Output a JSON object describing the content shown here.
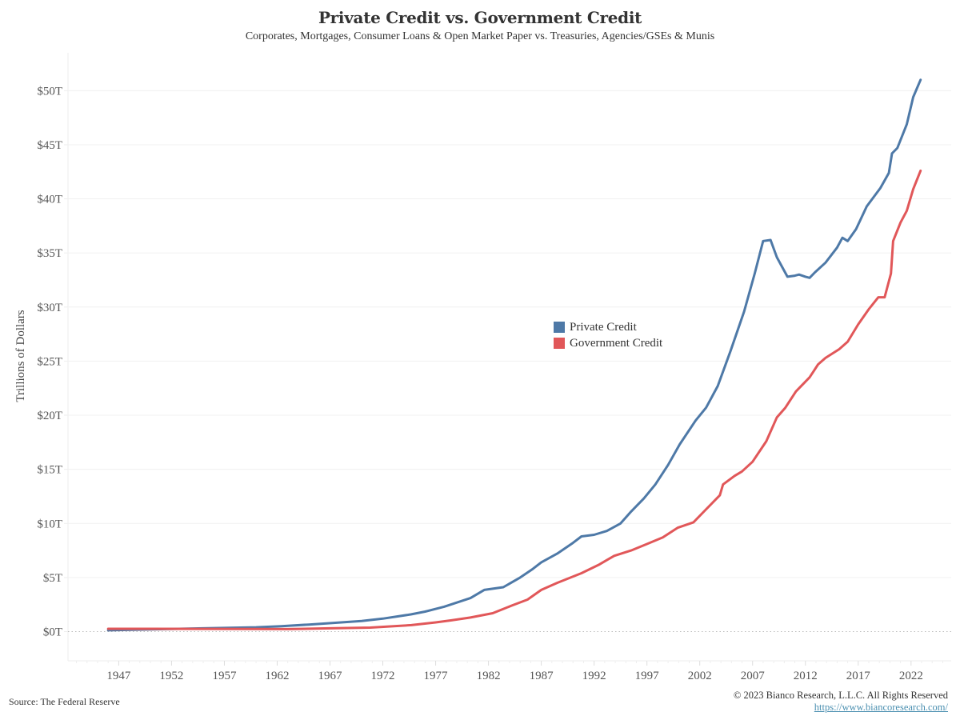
{
  "chart_data": {
    "type": "line",
    "title": "Private Credit vs. Government Credit",
    "subtitle": "Corporates, Mortgages, Consumer Loans & Open Market Paper vs. Treasuries, Agencies/GSEs & Munis",
    "xlabel": "",
    "ylabel": "Trillions of Dollars",
    "xlim": [
      1942.2,
      2025.8
    ],
    "ylim": [
      -2.7,
      53.5
    ],
    "x_ticks": [
      1947,
      1952,
      1957,
      1962,
      1967,
      1972,
      1977,
      1982,
      1987,
      1992,
      1997,
      2002,
      2007,
      2012,
      2017,
      2022
    ],
    "x_tick_labels": [
      "1947",
      "1952",
      "1957",
      "1962",
      "1967",
      "1972",
      "1977",
      "1982",
      "1987",
      "1992",
      "1997",
      "2002",
      "2007",
      "2012",
      "2017",
      "2022"
    ],
    "y_ticks": [
      0,
      5,
      10,
      15,
      20,
      25,
      30,
      35,
      40,
      45,
      50
    ],
    "y_tick_labels": [
      "$0T",
      "$5T",
      "$10T",
      "$15T",
      "$20T",
      "$25T",
      "$30T",
      "$35T",
      "$40T",
      "$45T",
      "$50T"
    ],
    "grid": true,
    "legend_position": "center",
    "series": [
      {
        "name": "Private Credit",
        "color": "#4e79a7",
        "x": [
          1946,
          1950,
          1955,
          1960,
          1962.4,
          1965,
          1970,
          1972,
          1974.7,
          1976,
          1977.8,
          1980.3,
          1981.6,
          1983.4,
          1985,
          1986.2,
          1987,
          1988.5,
          1990,
          1990.8,
          1992,
          1993.2,
          1994.5,
          1995.5,
          1996.7,
          1997.8,
          1999,
          2000.1,
          2001.6,
          2002.6,
          2003.7,
          2004.9,
          2006.2,
          2007.2,
          2008.0,
          2008.7,
          2009.3,
          2010.3,
          2011.0,
          2011.4,
          2012.0,
          2012.4,
          2012.9,
          2013.9,
          2015.0,
          2015.5,
          2016.0,
          2016.8,
          2017.8,
          2019.1,
          2019.9,
          2020.2,
          2020.7,
          2021.6,
          2022.2,
          2022.9
        ],
        "values": [
          0.12,
          0.2,
          0.3,
          0.4,
          0.5,
          0.65,
          0.98,
          1.2,
          1.6,
          1.85,
          2.3,
          3.1,
          3.85,
          4.1,
          5.0,
          5.8,
          6.4,
          7.2,
          8.2,
          8.8,
          8.95,
          9.3,
          10.0,
          11.1,
          12.3,
          13.6,
          15.4,
          17.3,
          19.5,
          20.7,
          22.7,
          25.9,
          29.6,
          33.1,
          36.1,
          36.2,
          34.6,
          32.8,
          32.9,
          33.0,
          32.8,
          32.7,
          33.2,
          34.1,
          35.5,
          36.4,
          36.1,
          37.2,
          39.3,
          41.0,
          42.4,
          44.2,
          44.7,
          46.9,
          49.4,
          51.0
        ]
      },
      {
        "name": "Government Credit",
        "color": "#e15759",
        "x": [
          1946,
          1950,
          1955,
          1960,
          1963,
          1967,
          1970.8,
          1974.7,
          1977,
          1978.5,
          1980.3,
          1982.4,
          1984.2,
          1985.7,
          1987,
          1988.5,
          1990.8,
          1992.5,
          1993.9,
          1995.5,
          1997,
          1998.5,
          1999.9,
          2001.4,
          2002.5,
          2003.9,
          2004.2,
          2005.3,
          2006,
          2007.0,
          2008.3,
          2009.3,
          2010.1,
          2011.1,
          2012.4,
          2013.2,
          2013.9,
          2015.2,
          2016,
          2017.0,
          2018.0,
          2018.9,
          2019.5,
          2020.1,
          2020.3,
          2021.0,
          2021.6,
          2022.2,
          2022.9
        ],
        "values": [
          0.26,
          0.26,
          0.25,
          0.24,
          0.23,
          0.3,
          0.37,
          0.6,
          0.85,
          1.04,
          1.3,
          1.7,
          2.4,
          2.96,
          3.85,
          4.5,
          5.4,
          6.2,
          7.0,
          7.5,
          8.1,
          8.7,
          9.6,
          10.1,
          11.2,
          12.6,
          13.6,
          14.4,
          14.8,
          15.7,
          17.6,
          19.8,
          20.7,
          22.2,
          23.5,
          24.7,
          25.3,
          26.1,
          26.8,
          28.4,
          29.8,
          30.9,
          30.9,
          33.1,
          36.1,
          37.8,
          38.9,
          40.9,
          42.6
        ]
      }
    ]
  },
  "header": {
    "title": "Private Credit vs. Government Credit",
    "subtitle": "Corporates, Mortgages, Consumer Loans & Open Market Paper vs. Treasuries, Agencies/GSEs & Munis"
  },
  "legend": {
    "items": [
      {
        "label": "Private Credit",
        "color": "#4e79a7"
      },
      {
        "label": "Government Credit",
        "color": "#e15759"
      }
    ]
  },
  "footer": {
    "source": "Source: The Federal Reserve",
    "copyright": "© 2023 Bianco Research, L.L.C. All Rights Reserved",
    "link": "https://www.biancoresearch.com/"
  }
}
